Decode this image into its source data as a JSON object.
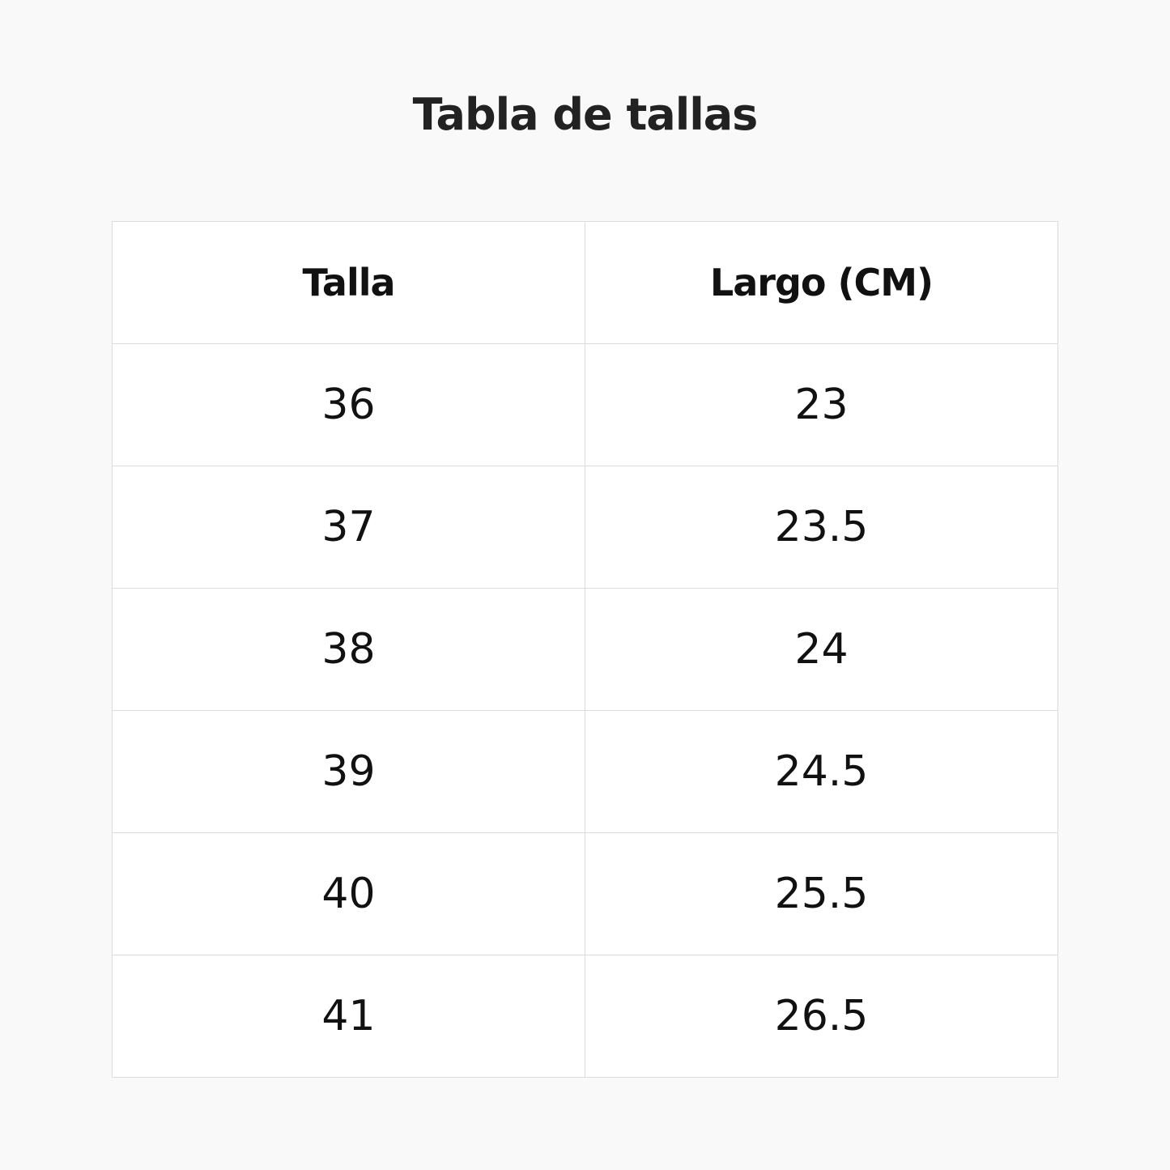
{
  "title": "Tabla de tallas",
  "table": {
    "headers": [
      "Talla",
      "Largo (CM)"
    ],
    "rows": [
      [
        "36",
        "23"
      ],
      [
        "37",
        "23.5"
      ],
      [
        "38",
        "24"
      ],
      [
        "39",
        "24.5"
      ],
      [
        "40",
        "25.5"
      ],
      [
        "41",
        "26.5"
      ]
    ]
  }
}
